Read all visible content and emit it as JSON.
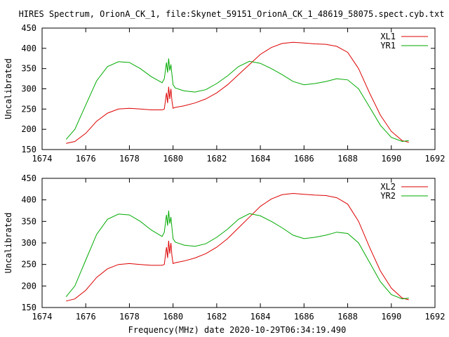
{
  "title": "HIRES Spectrum, OrionA_CK_1, file:Skynet_59151_OrionA_CK_1_48619_58075.spect.cyb.txt",
  "xlabel": "Frequency(MHz) date 2020-10-29T06:34:19.490",
  "colors": {
    "x": "#dd0000",
    "y": "#00aa00"
  },
  "chart_data": [
    {
      "type": "line",
      "ylabel": "Uncalibrated",
      "xlim": [
        1674,
        1692
      ],
      "ylim": [
        150,
        450
      ],
      "xticks": [
        "1674",
        "1676",
        "1678",
        "1680",
        "1682",
        "1684",
        "1686",
        "1688",
        "1690",
        "1692"
      ],
      "yticks": [
        "150",
        "200",
        "250",
        "300",
        "350",
        "400",
        "450"
      ],
      "legend_position": "top-right",
      "grid": false,
      "series": [
        {
          "name": "XL1",
          "color": "#dd0000",
          "x": [
            1675.1,
            1675.5,
            1676.0,
            1676.5,
            1677.0,
            1677.5,
            1678.0,
            1678.5,
            1679.0,
            1679.5,
            1679.6,
            1679.7,
            1679.75,
            1679.8,
            1679.85,
            1679.9,
            1679.95,
            1680.0,
            1680.1,
            1680.5,
            1681.0,
            1681.5,
            1682.0,
            1682.5,
            1683.0,
            1683.5,
            1684.0,
            1684.5,
            1685.0,
            1685.5,
            1686.0,
            1686.5,
            1687.0,
            1687.5,
            1688.0,
            1688.5,
            1689.0,
            1689.5,
            1690.0,
            1690.5,
            1690.8
          ],
          "y": [
            165,
            170,
            190,
            220,
            240,
            250,
            252,
            250,
            248,
            248,
            250,
            290,
            265,
            305,
            275,
            300,
            270,
            252,
            254,
            258,
            265,
            275,
            290,
            310,
            335,
            360,
            385,
            402,
            412,
            415,
            413,
            411,
            410,
            405,
            390,
            350,
            290,
            235,
            195,
            172,
            168
          ]
        },
        {
          "name": "YR1",
          "color": "#00aa00",
          "x": [
            1675.1,
            1675.5,
            1676.0,
            1676.5,
            1677.0,
            1677.5,
            1678.0,
            1678.5,
            1679.0,
            1679.5,
            1679.6,
            1679.7,
            1679.75,
            1679.8,
            1679.85,
            1679.9,
            1679.95,
            1680.0,
            1680.1,
            1680.5,
            1681.0,
            1681.5,
            1682.0,
            1682.5,
            1683.0,
            1683.5,
            1684.0,
            1684.5,
            1685.0,
            1685.5,
            1686.0,
            1686.5,
            1687.0,
            1687.5,
            1688.0,
            1688.5,
            1689.0,
            1689.5,
            1690.0,
            1690.5,
            1690.8
          ],
          "y": [
            175,
            200,
            260,
            320,
            355,
            367,
            365,
            350,
            330,
            315,
            325,
            365,
            340,
            375,
            345,
            360,
            335,
            310,
            302,
            295,
            292,
            298,
            313,
            332,
            355,
            368,
            363,
            350,
            335,
            318,
            310,
            313,
            318,
            325,
            322,
            300,
            255,
            210,
            180,
            170,
            172
          ]
        }
      ]
    },
    {
      "type": "line",
      "ylabel": "Uncalibrated",
      "xlim": [
        1674,
        1692
      ],
      "ylim": [
        150,
        450
      ],
      "xticks": [
        "1674",
        "1676",
        "1678",
        "1680",
        "1682",
        "1684",
        "1686",
        "1688",
        "1690",
        "1692"
      ],
      "yticks": [
        "150",
        "200",
        "250",
        "300",
        "350",
        "400",
        "450"
      ],
      "legend_position": "top-right",
      "grid": false,
      "series": [
        {
          "name": "XL2",
          "color": "#dd0000",
          "x": [
            1675.1,
            1675.5,
            1676.0,
            1676.5,
            1677.0,
            1677.5,
            1678.0,
            1678.5,
            1679.0,
            1679.5,
            1679.6,
            1679.7,
            1679.75,
            1679.8,
            1679.85,
            1679.9,
            1679.95,
            1680.0,
            1680.1,
            1680.5,
            1681.0,
            1681.5,
            1682.0,
            1682.5,
            1683.0,
            1683.5,
            1684.0,
            1684.5,
            1685.0,
            1685.5,
            1686.0,
            1686.5,
            1687.0,
            1687.5,
            1688.0,
            1688.5,
            1689.0,
            1689.5,
            1690.0,
            1690.5,
            1690.8
          ],
          "y": [
            165,
            170,
            190,
            220,
            240,
            250,
            252,
            250,
            248,
            248,
            250,
            290,
            265,
            305,
            275,
            300,
            270,
            252,
            254,
            258,
            265,
            275,
            290,
            310,
            335,
            360,
            385,
            402,
            412,
            415,
            413,
            411,
            410,
            405,
            390,
            350,
            290,
            235,
            195,
            172,
            168
          ]
        },
        {
          "name": "YR2",
          "color": "#00aa00",
          "x": [
            1675.1,
            1675.5,
            1676.0,
            1676.5,
            1677.0,
            1677.5,
            1678.0,
            1678.5,
            1679.0,
            1679.5,
            1679.6,
            1679.7,
            1679.75,
            1679.8,
            1679.85,
            1679.9,
            1679.95,
            1680.0,
            1680.1,
            1680.5,
            1681.0,
            1681.5,
            1682.0,
            1682.5,
            1683.0,
            1683.5,
            1684.0,
            1684.5,
            1685.0,
            1685.5,
            1686.0,
            1686.5,
            1687.0,
            1687.5,
            1688.0,
            1688.5,
            1689.0,
            1689.5,
            1690.0,
            1690.5,
            1690.8
          ],
          "y": [
            175,
            200,
            260,
            320,
            355,
            367,
            365,
            350,
            330,
            315,
            325,
            365,
            340,
            375,
            345,
            360,
            335,
            310,
            302,
            295,
            292,
            298,
            313,
            332,
            355,
            368,
            363,
            350,
            335,
            318,
            310,
            313,
            318,
            325,
            322,
            300,
            255,
            210,
            180,
            170,
            172
          ]
        }
      ]
    }
  ]
}
